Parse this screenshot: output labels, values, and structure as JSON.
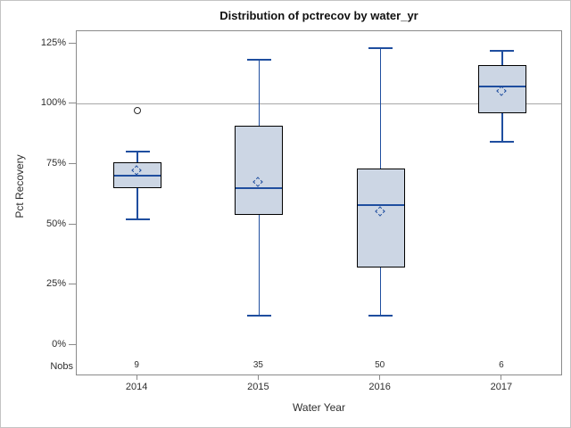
{
  "chart_data": {
    "type": "boxplot",
    "title": "Distribution of pctrecov by water_yr",
    "xlabel": "Water Year",
    "ylabel": "Pct Recovery",
    "nobs_label": "Nobs",
    "categories": [
      "2014",
      "2015",
      "2016",
      "2017"
    ],
    "y_ticks": [
      "0%",
      "25%",
      "50%",
      "75%",
      "100%",
      "125%"
    ],
    "y_tick_values": [
      0,
      25,
      50,
      75,
      100,
      125
    ],
    "ylim": [
      -13,
      130
    ],
    "reference_line": 100,
    "grid": "reference-line-only",
    "legend": "none",
    "series": [
      {
        "category": "2014",
        "nobs": 9,
        "whisker_low": 52,
        "q1": 65,
        "median": 70,
        "mean": 72,
        "q3": 75.5,
        "whisker_high": 80,
        "outliers": [
          97
        ]
      },
      {
        "category": "2015",
        "nobs": 35,
        "whisker_low": 12,
        "q1": 54,
        "median": 65,
        "mean": 67,
        "q3": 91,
        "whisker_high": 118,
        "outliers": []
      },
      {
        "category": "2016",
        "nobs": 50,
        "whisker_low": 12,
        "q1": 32,
        "median": 58,
        "mean": 55,
        "q3": 73,
        "whisker_high": 123,
        "outliers": []
      },
      {
        "category": "2017",
        "nobs": 6,
        "whisker_low": 84,
        "q1": 96,
        "median": 107,
        "mean": 105,
        "q3": 116,
        "whisker_high": 122,
        "outliers": []
      }
    ],
    "colors": {
      "box_fill": "#ccd6e4",
      "box_border": "#000000",
      "line": "#1f4e9f",
      "axis": "#8a8a8a",
      "reference": "#a8a8a8",
      "text": "#2e2e2e",
      "outlier": "#2b2b2b",
      "figure_border": "#c4c4c4"
    }
  }
}
